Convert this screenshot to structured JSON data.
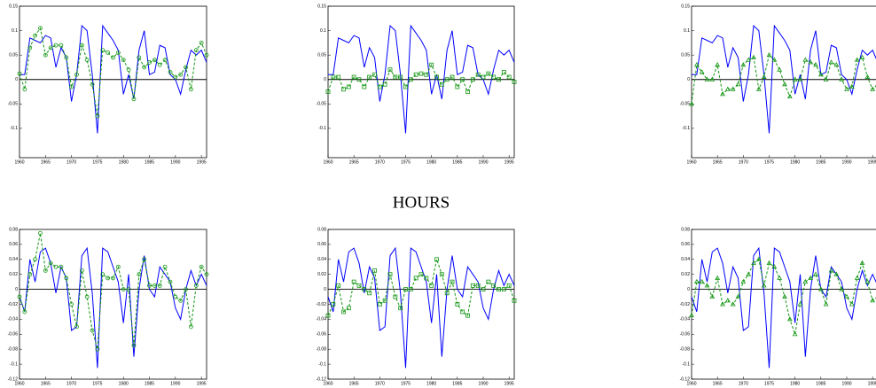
{
  "chart_data": [
    {
      "type": "line",
      "ylim": [
        -0.16,
        0.15
      ],
      "yticks": [
        0.15,
        0.1,
        0.05,
        0,
        -0.05,
        -0.1
      ],
      "xlim": [
        1960,
        1996
      ],
      "xticks": [
        1960,
        1965,
        1970,
        1975,
        1980,
        1985,
        1990,
        1995
      ],
      "x": [
        1960,
        1961,
        1962,
        1963,
        1964,
        1965,
        1966,
        1967,
        1968,
        1969,
        1970,
        1971,
        1972,
        1973,
        1974,
        1975,
        1976,
        1977,
        1978,
        1979,
        1980,
        1981,
        1982,
        1983,
        1984,
        1985,
        1986,
        1987,
        1988,
        1989,
        1990,
        1991,
        1992,
        1993,
        1994,
        1995,
        1996
      ],
      "series": [
        {
          "color": "#0000ff",
          "dashed": false,
          "marker": "none",
          "values": [
            0.01,
            0.01,
            0.085,
            0.08,
            0.075,
            0.09,
            0.085,
            0.025,
            0.065,
            0.045,
            -0.045,
            0.01,
            0.11,
            0.1,
            0.01,
            -0.11,
            0.11,
            0.095,
            0.08,
            0.06,
            -0.03,
            0.01,
            -0.04,
            0.06,
            0.1,
            0.01,
            0.015,
            0.07,
            0.065,
            0.01,
            0.0,
            -0.03,
            0.02,
            0.06,
            0.05,
            0.06,
            0.035
          ]
        },
        {
          "color": "#129612",
          "dashed": true,
          "marker": "circle",
          "values": [
            0.012,
            -0.02,
            0.065,
            0.09,
            0.105,
            0.05,
            0.065,
            0.07,
            0.07,
            0.045,
            -0.015,
            0.01,
            0.07,
            0.04,
            -0.01,
            -0.075,
            0.06,
            0.055,
            0.045,
            0.055,
            0.04,
            0.02,
            -0.04,
            0.045,
            0.025,
            0.035,
            0.04,
            0.03,
            0.04,
            0.015,
            0.005,
            0.01,
            0.025,
            -0.02,
            0.06,
            0.075,
            0.05
          ]
        }
      ]
    },
    {
      "type": "line",
      "ylim": [
        -0.16,
        0.15
      ],
      "yticks": [
        0.15,
        0.1,
        0.05,
        0,
        -0.05,
        -0.1
      ],
      "xlim": [
        1960,
        1996
      ],
      "xticks": [
        1960,
        1965,
        1970,
        1975,
        1980,
        1985,
        1990,
        1995
      ],
      "x": [
        1960,
        1961,
        1962,
        1963,
        1964,
        1965,
        1966,
        1967,
        1968,
        1969,
        1970,
        1971,
        1972,
        1973,
        1974,
        1975,
        1976,
        1977,
        1978,
        1979,
        1980,
        1981,
        1982,
        1983,
        1984,
        1985,
        1986,
        1987,
        1988,
        1989,
        1990,
        1991,
        1992,
        1993,
        1994,
        1995,
        1996
      ],
      "series": [
        {
          "color": "#0000ff",
          "dashed": false,
          "marker": "none",
          "values": [
            0.01,
            0.01,
            0.085,
            0.08,
            0.075,
            0.09,
            0.085,
            0.025,
            0.065,
            0.045,
            -0.045,
            0.01,
            0.11,
            0.1,
            0.01,
            -0.11,
            0.11,
            0.095,
            0.08,
            0.06,
            -0.03,
            0.01,
            -0.04,
            0.06,
            0.1,
            0.01,
            0.015,
            0.07,
            0.065,
            0.01,
            0.0,
            -0.03,
            0.02,
            0.06,
            0.05,
            0.06,
            0.035
          ]
        },
        {
          "color": "#129612",
          "dashed": true,
          "marker": "square",
          "values": [
            -0.025,
            0.005,
            0.005,
            -0.02,
            -0.015,
            0.005,
            0.0,
            -0.015,
            0.005,
            0.01,
            -0.015,
            -0.01,
            0.02,
            0.005,
            0.005,
            -0.015,
            0.0,
            0.01,
            0.012,
            0.01,
            0.03,
            0.005,
            -0.01,
            0.0,
            0.005,
            -0.015,
            0.0,
            -0.025,
            0.0,
            0.01,
            0.005,
            0.012,
            0.005,
            0.0,
            0.015,
            0.005,
            -0.005
          ]
        }
      ]
    },
    {
      "type": "line",
      "ylim": [
        -0.16,
        0.15
      ],
      "yticks": [
        0.15,
        0.1,
        0.05,
        0,
        -0.05,
        -0.1
      ],
      "xlim": [
        1960,
        1996
      ],
      "xticks": [
        1960,
        1965,
        1970,
        1975,
        1980,
        1985,
        1990,
        1995
      ],
      "x": [
        1960,
        1961,
        1962,
        1963,
        1964,
        1965,
        1966,
        1967,
        1968,
        1969,
        1970,
        1971,
        1972,
        1973,
        1974,
        1975,
        1976,
        1977,
        1978,
        1979,
        1980,
        1981,
        1982,
        1983,
        1984,
        1985,
        1986,
        1987,
        1988,
        1989,
        1990,
        1991,
        1992,
        1993,
        1994,
        1995,
        1996
      ],
      "series": [
        {
          "color": "#0000ff",
          "dashed": false,
          "marker": "none",
          "values": [
            0.01,
            0.01,
            0.085,
            0.08,
            0.075,
            0.09,
            0.085,
            0.025,
            0.065,
            0.045,
            -0.045,
            0.01,
            0.11,
            0.1,
            0.01,
            -0.11,
            0.11,
            0.095,
            0.08,
            0.06,
            -0.03,
            0.01,
            -0.04,
            0.06,
            0.1,
            0.01,
            0.015,
            0.07,
            0.065,
            0.01,
            0.0,
            -0.03,
            0.02,
            0.06,
            0.05,
            0.06,
            0.035
          ]
        },
        {
          "color": "#129612",
          "dashed": true,
          "marker": "triangle",
          "values": [
            -0.05,
            0.03,
            0.015,
            0.0,
            0.0,
            0.03,
            -0.03,
            -0.02,
            -0.02,
            -0.01,
            0.03,
            0.04,
            0.045,
            -0.02,
            0.005,
            0.05,
            0.04,
            0.02,
            -0.01,
            -0.035,
            0.0,
            0.0,
            0.04,
            0.035,
            0.03,
            0.01,
            0.0,
            0.035,
            0.03,
            0.0,
            -0.02,
            -0.015,
            0.04,
            0.045,
            0.005,
            -0.02,
            -0.01
          ]
        }
      ]
    },
    {
      "type": "line",
      "ylim": [
        -0.12,
        0.08
      ],
      "yticks": [
        0.08,
        0.06,
        0.04,
        0.02,
        0,
        -0.02,
        -0.04,
        -0.06,
        -0.08,
        -0.1,
        -0.12
      ],
      "xlim": [
        1960,
        1996
      ],
      "xticks": [
        1960,
        1965,
        1970,
        1975,
        1980,
        1985,
        1990,
        1995
      ],
      "x": [
        1960,
        1961,
        1962,
        1963,
        1964,
        1965,
        1966,
        1967,
        1968,
        1969,
        1970,
        1971,
        1972,
        1973,
        1974,
        1975,
        1976,
        1977,
        1978,
        1979,
        1980,
        1981,
        1982,
        1983,
        1984,
        1985,
        1986,
        1987,
        1988,
        1989,
        1990,
        1991,
        1992,
        1993,
        1994,
        1995,
        1996
      ],
      "series": [
        {
          "color": "#0000ff",
          "dashed": false,
          "marker": "none",
          "values": [
            -0.01,
            -0.03,
            0.04,
            0.01,
            0.05,
            0.055,
            0.035,
            -0.005,
            0.03,
            0.015,
            -0.055,
            -0.05,
            0.045,
            0.055,
            -0.005,
            -0.105,
            0.055,
            0.05,
            0.03,
            0.01,
            -0.045,
            0.02,
            -0.09,
            0.0,
            0.045,
            0.0,
            -0.01,
            0.03,
            0.02,
            0.01,
            -0.025,
            -0.04,
            0.0,
            0.025,
            0.005,
            0.02,
            0.005
          ]
        },
        {
          "color": "#129612",
          "dashed": true,
          "marker": "circle",
          "values": [
            -0.01,
            -0.03,
            0.02,
            0.04,
            0.075,
            0.025,
            0.035,
            0.03,
            0.03,
            0.015,
            -0.02,
            -0.05,
            0.025,
            -0.01,
            -0.055,
            -0.08,
            0.02,
            0.015,
            0.015,
            0.03,
            0.0,
            0.0,
            -0.075,
            0.02,
            0.04,
            0.005,
            0.005,
            0.005,
            0.03,
            0.01,
            -0.01,
            -0.015,
            0.0,
            -0.05,
            0.005,
            0.03,
            0.02
          ]
        }
      ]
    },
    {
      "type": "line",
      "title": "HOURS",
      "ylim": [
        -0.12,
        0.08
      ],
      "yticks": [
        0.08,
        0.06,
        0.04,
        0.02,
        0,
        -0.02,
        -0.04,
        -0.06,
        -0.08,
        -0.1,
        -0.12
      ],
      "xlim": [
        1960,
        1996
      ],
      "xticks": [
        1960,
        1965,
        1970,
        1975,
        1980,
        1985,
        1990,
        1995
      ],
      "x": [
        1960,
        1961,
        1962,
        1963,
        1964,
        1965,
        1966,
        1967,
        1968,
        1969,
        1970,
        1971,
        1972,
        1973,
        1974,
        1975,
        1976,
        1977,
        1978,
        1979,
        1980,
        1981,
        1982,
        1983,
        1984,
        1985,
        1986,
        1987,
        1988,
        1989,
        1990,
        1991,
        1992,
        1993,
        1994,
        1995,
        1996
      ],
      "series": [
        {
          "color": "#0000ff",
          "dashed": false,
          "marker": "none",
          "values": [
            -0.01,
            -0.03,
            0.04,
            0.01,
            0.05,
            0.055,
            0.035,
            -0.005,
            0.03,
            0.015,
            -0.055,
            -0.05,
            0.045,
            0.055,
            -0.005,
            -0.105,
            0.055,
            0.05,
            0.03,
            0.01,
            -0.045,
            0.02,
            -0.09,
            0.0,
            0.045,
            0.0,
            -0.01,
            0.03,
            0.02,
            0.01,
            -0.025,
            -0.04,
            0.0,
            0.025,
            0.005,
            0.02,
            0.005
          ]
        },
        {
          "color": "#129612",
          "dashed": true,
          "marker": "square",
          "values": [
            -0.035,
            -0.02,
            0.005,
            -0.03,
            -0.025,
            0.01,
            0.005,
            0.0,
            -0.005,
            0.025,
            -0.02,
            -0.015,
            0.02,
            -0.01,
            -0.025,
            0.0,
            0.0,
            0.015,
            0.02,
            0.015,
            0.005,
            0.04,
            0.02,
            -0.005,
            0.01,
            -0.02,
            -0.03,
            -0.035,
            0.005,
            0.005,
            0.0,
            0.01,
            0.005,
            0.0,
            0.0,
            0.005,
            -0.015
          ]
        }
      ]
    },
    {
      "type": "line",
      "ylim": [
        -0.12,
        0.08
      ],
      "yticks": [
        0.08,
        0.06,
        0.04,
        0.02,
        0,
        -0.02,
        -0.04,
        -0.06,
        -0.08,
        -0.1,
        -0.12
      ],
      "xlim": [
        1960,
        1996
      ],
      "xticks": [
        1960,
        1965,
        1970,
        1975,
        1980,
        1985,
        1990,
        1995
      ],
      "x": [
        1960,
        1961,
        1962,
        1963,
        1964,
        1965,
        1966,
        1967,
        1968,
        1969,
        1970,
        1971,
        1972,
        1973,
        1974,
        1975,
        1976,
        1977,
        1978,
        1979,
        1980,
        1981,
        1982,
        1983,
        1984,
        1985,
        1986,
        1987,
        1988,
        1989,
        1990,
        1991,
        1992,
        1993,
        1994,
        1995,
        1996
      ],
      "series": [
        {
          "color": "#0000ff",
          "dashed": false,
          "marker": "none",
          "values": [
            -0.01,
            -0.03,
            0.04,
            0.01,
            0.05,
            0.055,
            0.035,
            -0.005,
            0.03,
            0.015,
            -0.055,
            -0.05,
            0.045,
            0.055,
            -0.005,
            -0.105,
            0.055,
            0.05,
            0.03,
            0.01,
            -0.045,
            0.02,
            -0.09,
            0.0,
            0.045,
            0.0,
            -0.01,
            0.03,
            0.02,
            0.01,
            -0.025,
            -0.04,
            0.0,
            0.025,
            0.005,
            0.02,
            0.005
          ]
        },
        {
          "color": "#129612",
          "dashed": true,
          "marker": "triangle",
          "values": [
            -0.035,
            0.01,
            0.01,
            0.005,
            -0.01,
            0.015,
            -0.02,
            -0.015,
            -0.02,
            -0.01,
            0.01,
            0.02,
            0.035,
            0.04,
            0.005,
            0.035,
            0.03,
            0.015,
            -0.01,
            -0.04,
            -0.06,
            -0.02,
            0.01,
            0.015,
            0.02,
            0.0,
            -0.02,
            0.025,
            0.02,
            0.0,
            -0.01,
            -0.02,
            0.015,
            0.035,
            0.01,
            -0.015,
            -0.01
          ]
        }
      ]
    }
  ]
}
